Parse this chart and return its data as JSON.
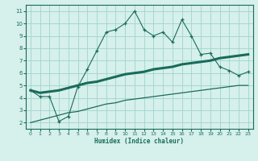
{
  "xlabel": "Humidex (Indice chaleur)",
  "x_values": [
    0,
    1,
    2,
    3,
    4,
    5,
    6,
    7,
    8,
    9,
    10,
    11,
    12,
    13,
    14,
    15,
    16,
    17,
    18,
    19,
    20,
    21,
    22,
    23
  ],
  "line1_y": [
    4.6,
    4.1,
    4.1,
    2.1,
    2.5,
    4.9,
    6.3,
    7.8,
    9.3,
    9.5,
    10.0,
    11.0,
    9.5,
    9.0,
    9.3,
    8.5,
    10.3,
    9.0,
    7.5,
    7.6,
    6.5,
    6.2,
    5.8,
    6.1
  ],
  "trend_upper_y": [
    4.6,
    4.4,
    4.5,
    4.6,
    4.8,
    5.0,
    5.2,
    5.3,
    5.5,
    5.7,
    5.9,
    6.0,
    6.1,
    6.3,
    6.4,
    6.5,
    6.7,
    6.8,
    6.9,
    7.0,
    7.2,
    7.3,
    7.4,
    7.5
  ],
  "trend_lower_y": [
    2.0,
    2.2,
    2.4,
    2.6,
    2.8,
    2.9,
    3.1,
    3.3,
    3.5,
    3.6,
    3.8,
    3.9,
    4.0,
    4.1,
    4.2,
    4.3,
    4.4,
    4.5,
    4.6,
    4.7,
    4.8,
    4.9,
    5.0,
    5.0
  ],
  "line_color": "#1a6b5a",
  "bg_color": "#d6f0ec",
  "grid_color": "#a0d4cc",
  "ylim": [
    1.5,
    11.5
  ],
  "xlim": [
    -0.5,
    23.5
  ],
  "yticks": [
    2,
    3,
    4,
    5,
    6,
    7,
    8,
    9,
    10,
    11
  ],
  "xticks": [
    0,
    1,
    2,
    3,
    4,
    5,
    6,
    7,
    8,
    9,
    10,
    11,
    12,
    13,
    14,
    15,
    16,
    17,
    18,
    19,
    20,
    21,
    22,
    23
  ]
}
